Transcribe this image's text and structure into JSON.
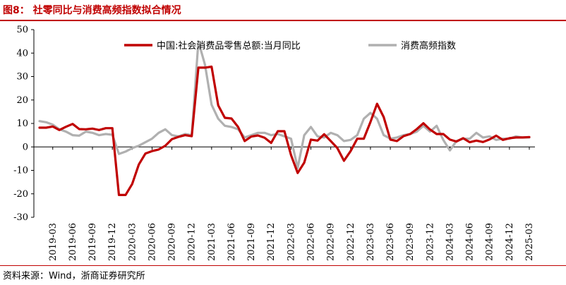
{
  "figure": {
    "title": "图8：  社零同比与消费高频指数拟合情况",
    "source": "资料来源：Wind，浙商证券研究所"
  },
  "colors": {
    "series1": "#c00000",
    "series2": "#b0b0b0",
    "accent": "#c00000"
  },
  "chart_data": {
    "type": "line",
    "title": "",
    "xlabel": "",
    "ylabel": "",
    "ylim": [
      -30,
      50
    ],
    "yticks": [
      "50",
      "40",
      "30",
      "20",
      "10",
      "0",
      "-10",
      "-20",
      "-30"
    ],
    "x_tick_labels": [
      "2019-03",
      "2019-06",
      "2019-09",
      "2019-12",
      "2020-03",
      "2020-06",
      "2020-09",
      "2020-12",
      "2021-03",
      "2021-06",
      "2021-09",
      "2021-12",
      "2022-03",
      "2022-06",
      "2022-09",
      "2022-12",
      "2023-03",
      "2023-06",
      "2023-09",
      "2023-12",
      "2024-03",
      "2024-06",
      "2024-09",
      "2024-12",
      "2025-03"
    ],
    "months": [
      "2019-01",
      "2019-02",
      "2019-03",
      "2019-04",
      "2019-05",
      "2019-06",
      "2019-07",
      "2019-08",
      "2019-09",
      "2019-10",
      "2019-11",
      "2019-12",
      "2020-01",
      "2020-02",
      "2020-03",
      "2020-04",
      "2020-05",
      "2020-06",
      "2020-07",
      "2020-08",
      "2020-09",
      "2020-10",
      "2020-11",
      "2020-12",
      "2021-01",
      "2021-02",
      "2021-03",
      "2021-04",
      "2021-05",
      "2021-06",
      "2021-07",
      "2021-08",
      "2021-09",
      "2021-10",
      "2021-11",
      "2021-12",
      "2022-01",
      "2022-02",
      "2022-03",
      "2022-04",
      "2022-05",
      "2022-06",
      "2022-07",
      "2022-08",
      "2022-09",
      "2022-10",
      "2022-11",
      "2022-12",
      "2023-01",
      "2023-02",
      "2023-03",
      "2023-04",
      "2023-05",
      "2023-06",
      "2023-07",
      "2023-08",
      "2023-09",
      "2023-10",
      "2023-11",
      "2023-12",
      "2024-01",
      "2024-02",
      "2024-03",
      "2024-04",
      "2024-05",
      "2024-06",
      "2024-07",
      "2024-08",
      "2024-09",
      "2024-10",
      "2024-11",
      "2024-12",
      "2025-01",
      "2025-02",
      "2025-03"
    ],
    "legend_position": "top",
    "series": [
      {
        "name": "中国:社会消费品零售总额:当月同比",
        "values": [
          8.2,
          8.2,
          8.7,
          7.2,
          8.6,
          9.8,
          7.6,
          7.5,
          7.8,
          7.2,
          8.0,
          8.0,
          -20.5,
          -20.5,
          -15.8,
          -7.5,
          -2.8,
          -1.8,
          -1.1,
          0.5,
          3.3,
          4.3,
          5.0,
          4.6,
          33.8,
          33.8,
          34.2,
          17.7,
          12.4,
          12.1,
          8.5,
          2.5,
          4.4,
          4.9,
          3.9,
          1.7,
          6.7,
          6.7,
          -3.5,
          -11.1,
          -6.7,
          3.1,
          2.7,
          5.4,
          2.5,
          -0.5,
          -5.9,
          -1.8,
          3.5,
          3.5,
          10.6,
          18.4,
          12.7,
          3.1,
          2.5,
          4.6,
          5.5,
          7.6,
          10.1,
          7.4,
          5.5,
          5.5,
          3.1,
          2.3,
          3.7,
          2.0,
          2.7,
          2.1,
          3.2,
          4.8,
          3.0,
          3.7,
          4.0,
          4.0,
          4.2
        ]
      },
      {
        "name": "消费高频指数",
        "values": [
          11.0,
          10.5,
          9.5,
          7.5,
          6.5,
          5.0,
          4.8,
          6.5,
          6.0,
          5.0,
          5.5,
          5.2,
          -3.0,
          -2.0,
          -0.5,
          0.5,
          2.0,
          3.5,
          6.0,
          7.5,
          5.0,
          4.5,
          5.5,
          5.0,
          45.0,
          35.0,
          18.0,
          12.0,
          9.0,
          8.5,
          7.5,
          4.0,
          5.0,
          6.0,
          6.0,
          5.0,
          5.5,
          4.5,
          3.5,
          -9.0,
          5.0,
          8.5,
          4.5,
          4.0,
          6.0,
          5.0,
          2.5,
          3.0,
          5.0,
          12.0,
          14.5,
          12.0,
          5.0,
          3.5,
          4.0,
          5.0,
          5.5,
          6.5,
          9.0,
          6.5,
          9.0,
          3.0,
          -1.5,
          2.5,
          3.5,
          3.5,
          6.0,
          4.0,
          4.5,
          3.0,
          3.5,
          3.5,
          4.5,
          4.0,
          4.0
        ]
      }
    ]
  }
}
